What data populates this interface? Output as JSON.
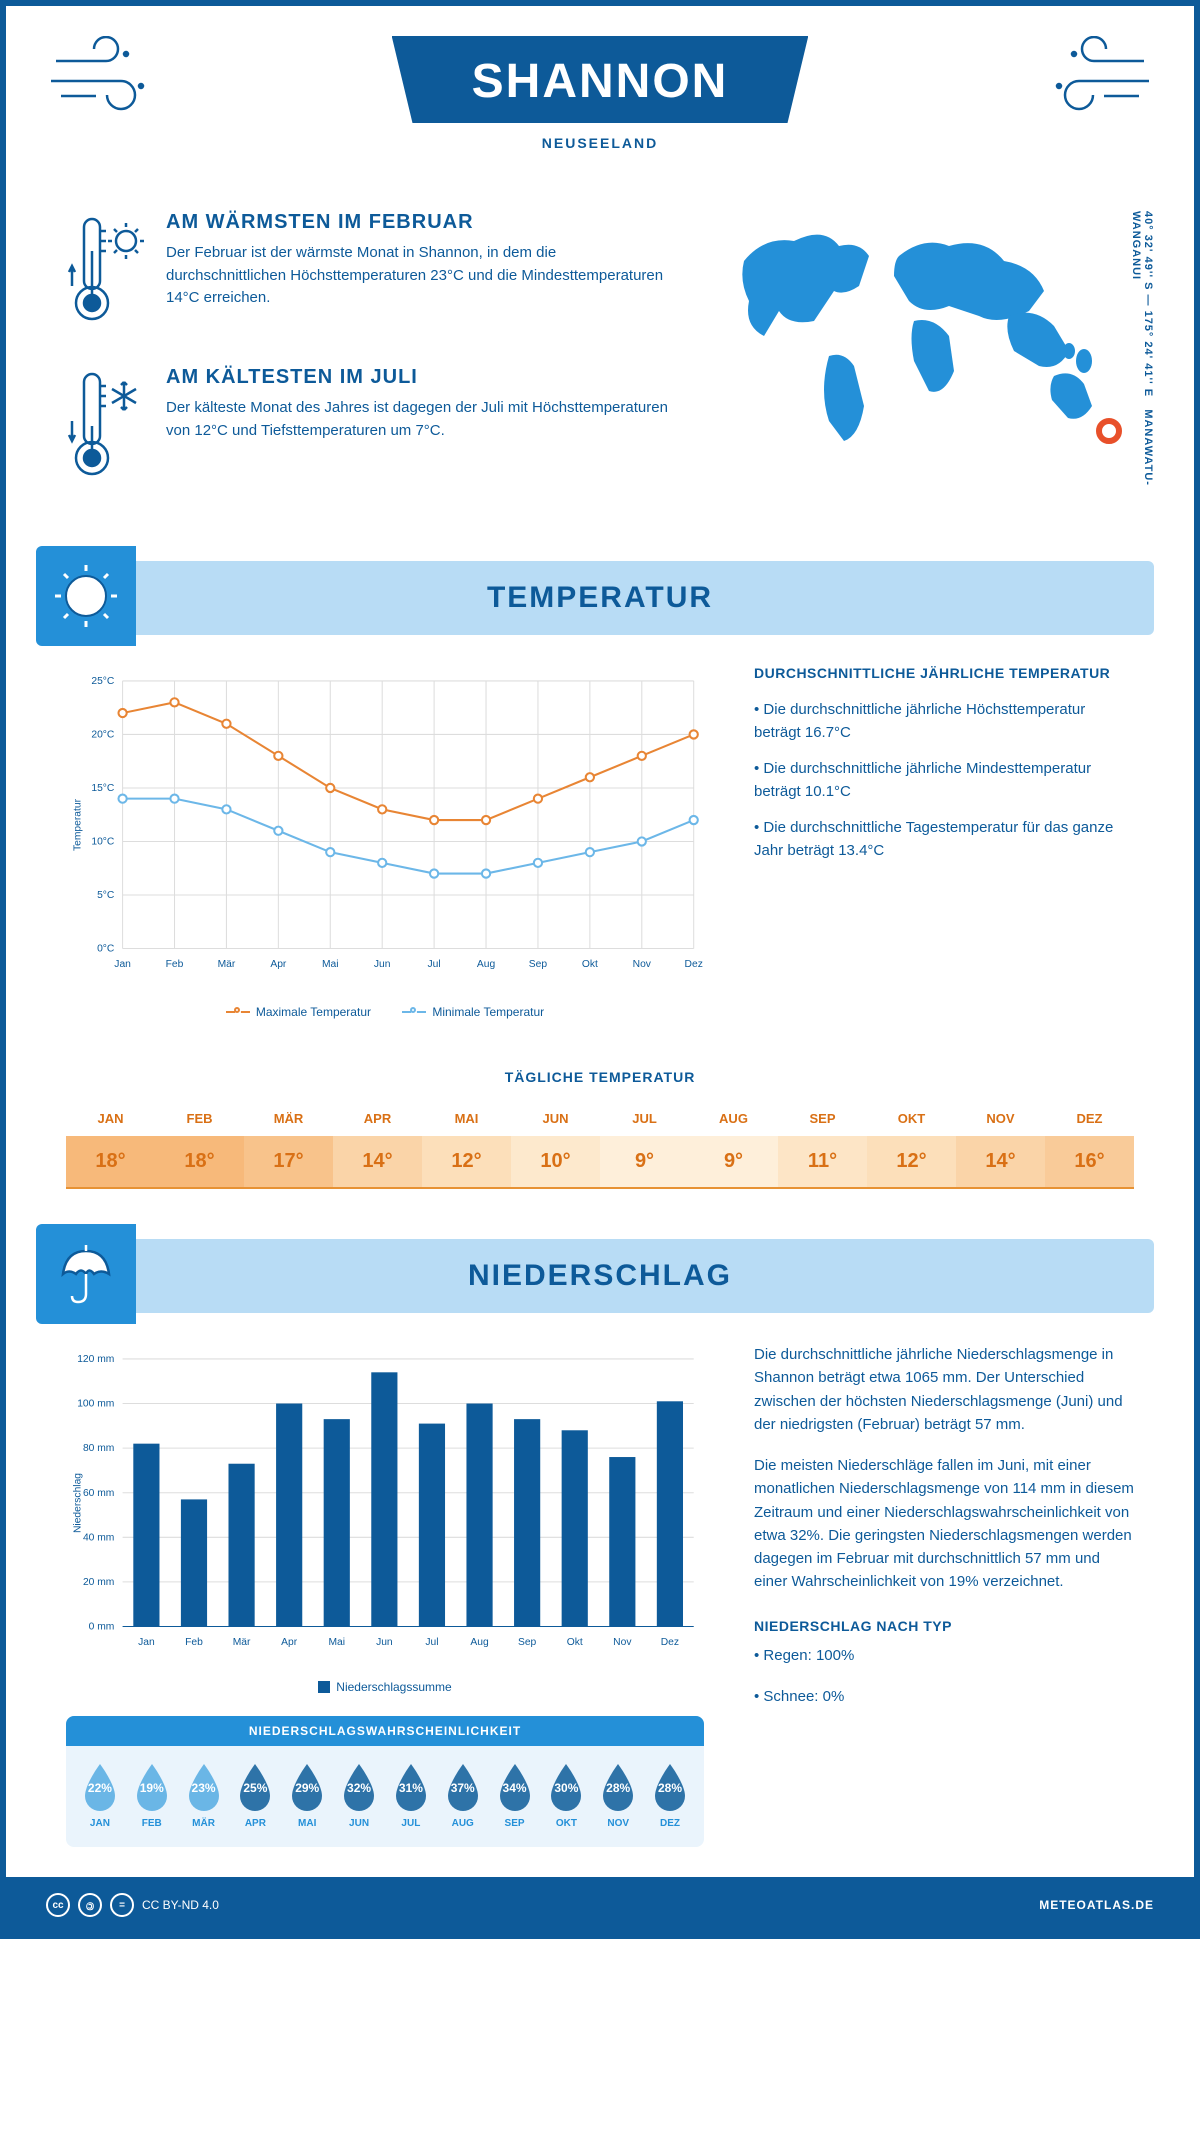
{
  "header": {
    "title": "SHANNON",
    "subtitle": "NEUSEELAND",
    "coordinates": "40° 32' 49'' S — 175° 24' 41'' E",
    "region": "MANAWATU-WANGANUI"
  },
  "colors": {
    "primary": "#0d5a99",
    "lightBlue": "#b8dcf5",
    "mediumBlue": "#2490d8",
    "panelBlue": "#eaf4fc",
    "orange": "#e88534",
    "orangeText": "#d97015",
    "maxLine": "#e88534",
    "minLine": "#6cb7e8",
    "barFill": "#0d5a99",
    "gridLine": "#cccccc"
  },
  "warmest": {
    "title": "AM WÄRMSTEN IM FEBRUAR",
    "text": "Der Februar ist der wärmste Monat in Shannon, in dem die durchschnittlichen Höchsttemperaturen 23°C und die Mindesttemperaturen 14°C erreichen."
  },
  "coldest": {
    "title": "AM KÄLTESTEN IM JULI",
    "text": "Der kälteste Monat des Jahres ist dagegen der Juli mit Höchsttemperaturen von 12°C und Tiefsttemperaturen um 7°C."
  },
  "temperature": {
    "sectionTitle": "TEMPERATUR",
    "factsTitle": "DURCHSCHNITTLICHE JÄHRLICHE TEMPERATUR",
    "fact1": "• Die durchschnittliche jährliche Höchsttemperatur beträgt 16.7°C",
    "fact2": "• Die durchschnittliche jährliche Mindesttemperatur beträgt 10.1°C",
    "fact3": "• Die durchschnittliche Tagestemperatur für das ganze Jahr beträgt 13.4°C",
    "chart": {
      "type": "line",
      "months": [
        "Jan",
        "Feb",
        "Mär",
        "Apr",
        "Mai",
        "Jun",
        "Jul",
        "Aug",
        "Sep",
        "Okt",
        "Nov",
        "Dez"
      ],
      "max": [
        22,
        23,
        21,
        18,
        15,
        13,
        12,
        12,
        14,
        16,
        18,
        20
      ],
      "min": [
        14,
        14,
        13,
        11,
        9,
        8,
        7,
        7,
        8,
        9,
        10,
        12
      ],
      "ylim": [
        0,
        25
      ],
      "ytick_step": 5,
      "yAxisLabel": "Temperatur",
      "legendMax": "Maximale Temperatur",
      "legendMin": "Minimale Temperatur",
      "maxColor": "#e88534",
      "minColor": "#6cb7e8",
      "gridColor": "#dddddd",
      "background": "#ffffff",
      "lineWidth": 2,
      "markerSize": 4
    },
    "dailyTitle": "TÄGLICHE TEMPERATUR",
    "daily": {
      "months": [
        "JAN",
        "FEB",
        "MÄR",
        "APR",
        "MAI",
        "JUN",
        "JUL",
        "AUG",
        "SEP",
        "OKT",
        "NOV",
        "DEZ"
      ],
      "values": [
        "18°",
        "18°",
        "17°",
        "14°",
        "12°",
        "10°",
        "9°",
        "9°",
        "11°",
        "12°",
        "14°",
        "16°"
      ],
      "bgColors": [
        "#f7b97a",
        "#f7b97a",
        "#f8c38b",
        "#fad4a8",
        "#fcdfba",
        "#fde9cd",
        "#feefda",
        "#feefda",
        "#fde5c6",
        "#fcdfba",
        "#fad4a8",
        "#f9cb99"
      ]
    }
  },
  "precipitation": {
    "sectionTitle": "NIEDERSCHLAG",
    "text1": "Die durchschnittliche jährliche Niederschlagsmenge in Shannon beträgt etwa 1065 mm. Der Unterschied zwischen der höchsten Niederschlagsmenge (Juni) und der niedrigsten (Februar) beträgt 57 mm.",
    "text2": "Die meisten Niederschläge fallen im Juni, mit einer monatlichen Niederschlagsmenge von 114 mm in diesem Zeitraum und einer Niederschlagswahrscheinlichkeit von etwa 32%. Die geringsten Niederschlagsmengen werden dagegen im Februar mit durchschnittlich 57 mm und einer Wahrscheinlichkeit von 19% verzeichnet.",
    "typeTitle": "NIEDERSCHLAG NACH TYP",
    "typeRain": "• Regen: 100%",
    "typeSnow": "• Schnee: 0%",
    "chart": {
      "type": "bar",
      "months": [
        "Jan",
        "Feb",
        "Mär",
        "Apr",
        "Mai",
        "Jun",
        "Jul",
        "Aug",
        "Sep",
        "Okt",
        "Nov",
        "Dez"
      ],
      "values": [
        82,
        57,
        73,
        100,
        93,
        114,
        91,
        100,
        93,
        88,
        76,
        101
      ],
      "ylim": [
        0,
        120
      ],
      "ytick_step": 20,
      "yAxisLabel": "Niederschlag",
      "legendLabel": "Niederschlagssumme",
      "barColor": "#0d5a99",
      "gridColor": "#dddddd",
      "barWidth": 0.55
    },
    "probability": {
      "title": "NIEDERSCHLAGSWAHRSCHEINLICHKEIT",
      "months": [
        "JAN",
        "FEB",
        "MÄR",
        "APR",
        "MAI",
        "JUN",
        "JUL",
        "AUG",
        "SEP",
        "OKT",
        "NOV",
        "DEZ"
      ],
      "values": [
        "22%",
        "19%",
        "23%",
        "25%",
        "29%",
        "32%",
        "31%",
        "37%",
        "34%",
        "30%",
        "28%",
        "28%"
      ],
      "dropColors": [
        "#6ab6e6",
        "#6ab6e6",
        "#6ab6e6",
        "#2e73a8",
        "#2e73a8",
        "#2e73a8",
        "#2e73a8",
        "#2e73a8",
        "#2e73a8",
        "#2e73a8",
        "#2e73a8",
        "#2e73a8"
      ]
    }
  },
  "footer": {
    "license": "CC BY-ND 4.0",
    "site": "METEOATLAS.DE"
  }
}
